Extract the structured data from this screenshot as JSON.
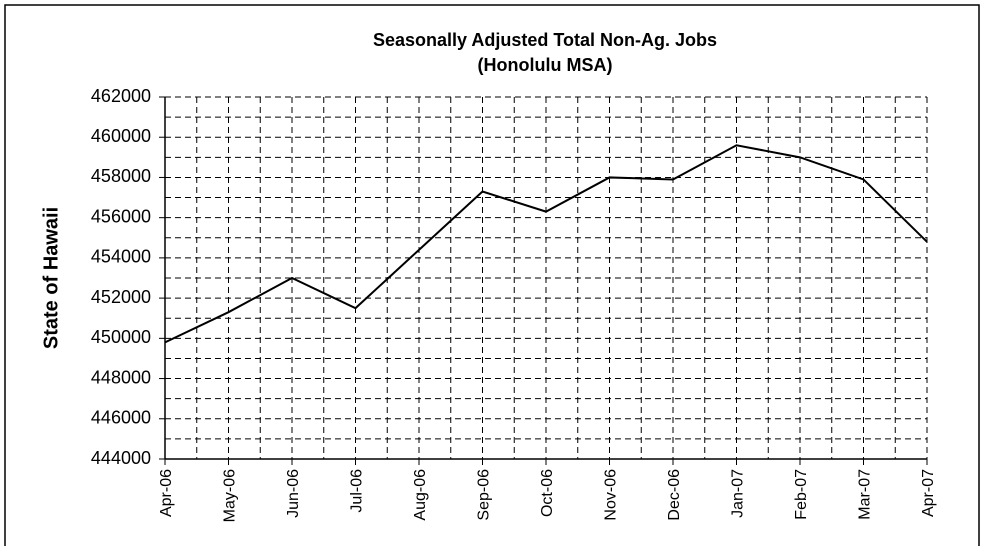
{
  "chart_data": {
    "type": "line",
    "title": "Seasonally Adjusted Total Non-Ag. Jobs",
    "subtitle": "(Honolulu MSA)",
    "y_label": "State of Hawaii",
    "categories": [
      "Apr-06",
      "May-06",
      "Jun-06",
      "Jul-06",
      "Aug-06",
      "Sep-06",
      "Oct-06",
      "Nov-06",
      "Dec-06",
      "Jan-07",
      "Feb-07",
      "Mar-07",
      "Apr-07"
    ],
    "series": [
      {
        "name": "Total Non-Ag. Jobs",
        "color": "#000000",
        "values": [
          449800,
          451300,
          453000,
          451500,
          454400,
          457300,
          456300,
          458000,
          457900,
          459600,
          459000,
          457900,
          454800
        ]
      }
    ],
    "ylim": [
      444000,
      462000
    ],
    "yticks": [
      444000,
      446000,
      448000,
      450000,
      452000,
      454000,
      456000,
      458000,
      460000,
      462000
    ],
    "grid": true
  }
}
